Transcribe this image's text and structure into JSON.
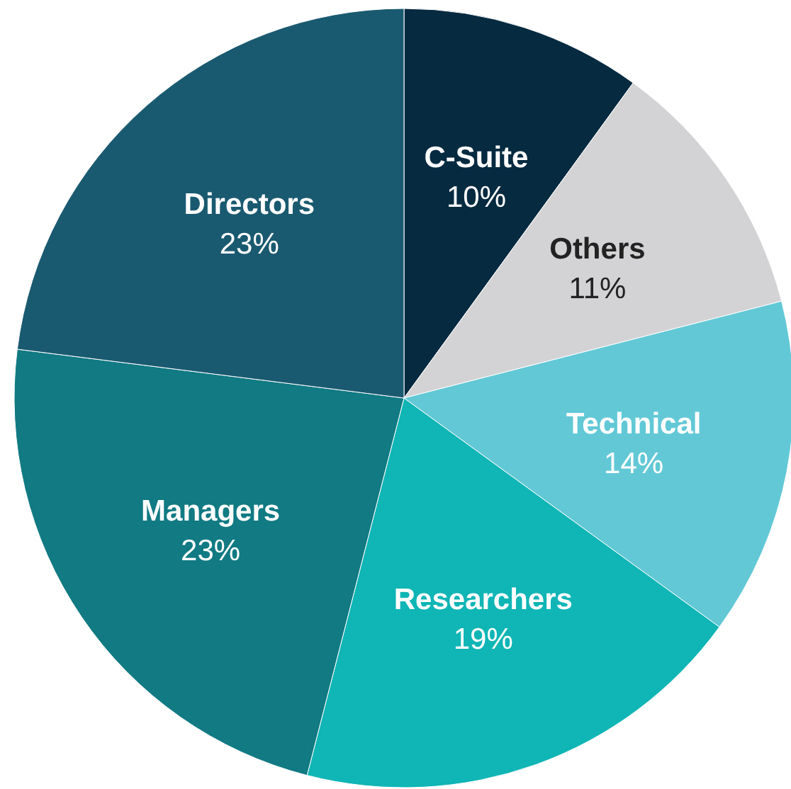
{
  "chart_data": {
    "type": "pie",
    "categories": [
      "C-Suite",
      "Others",
      "Technical",
      "Researchers",
      "Managers",
      "Directors"
    ],
    "values": [
      10,
      11,
      14,
      19,
      23,
      23
    ],
    "value_labels": [
      "10%",
      "11%",
      "14%",
      "19%",
      "23%",
      "23%"
    ],
    "colors": [
      "#062a40",
      "#d3d3d5",
      "#62c8d6",
      "#10b5b5",
      "#117a83",
      "#1a5a70"
    ]
  }
}
